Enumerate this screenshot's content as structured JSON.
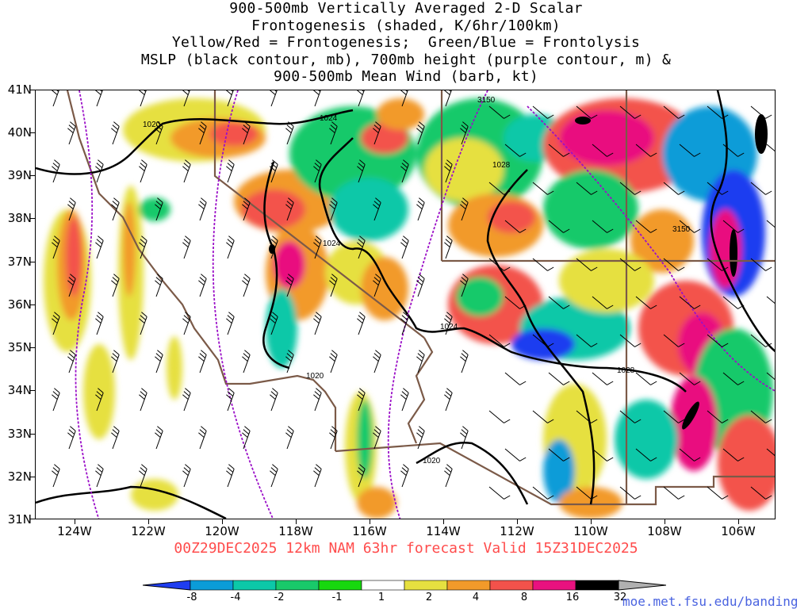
{
  "title": {
    "line1": "900-500mb Vertically Averaged 2-D Scalar",
    "line2": "Frontogenesis (shaded, K/6hr/100km)",
    "line3": "Yellow/Red = Frontogenesis;  Green/Blue = Frontolysis",
    "line4": "MSLP (black contour, mb), 700mb height (purple contour, m) &",
    "line5": "900-500mb Mean Wind (barb, kt)"
  },
  "valid_line": "00Z29DEC2025 12km NAM 63hr forecast Valid 15Z31DEC2025",
  "credit": "moe.met.fsu.edu/banding",
  "axes": {
    "lat_labels": [
      "41N",
      "40N",
      "39N",
      "38N",
      "37N",
      "36N",
      "35N",
      "34N",
      "33N",
      "32N",
      "31N"
    ],
    "lon_labels": [
      "124W",
      "122W",
      "120W",
      "118W",
      "116W",
      "114W",
      "112W",
      "110W",
      "108W",
      "106W"
    ],
    "lat_range": [
      31,
      41
    ],
    "lon_range": [
      -125.2,
      -105.1
    ]
  },
  "contour_labels": {
    "mslp": [
      "1020",
      "1024",
      "1024",
      "1028",
      "1024",
      "1028",
      "1020",
      "1020"
    ],
    "height": [
      "3150",
      "3150"
    ]
  },
  "colorbar": {
    "units": "K/6hr/100km",
    "ticks": [
      "-8",
      "-4",
      "-2",
      "-1",
      "1",
      "2",
      "4",
      "8",
      "16",
      "32"
    ],
    "colors": [
      "#1f3df0",
      "#0b9cd8",
      "#0cc8a8",
      "#19c96a",
      "#17d80e",
      "#ffffff",
      "#e6e040",
      "#f29a2a",
      "#f3524b",
      "#e9117f",
      "#000000",
      "#b0b0b0"
    ]
  },
  "colors": {
    "mslp_contour": "#000000",
    "height_contour": "#9b10c8",
    "state_border": "#7b5a48",
    "valid_text": "#ff4c4c"
  }
}
